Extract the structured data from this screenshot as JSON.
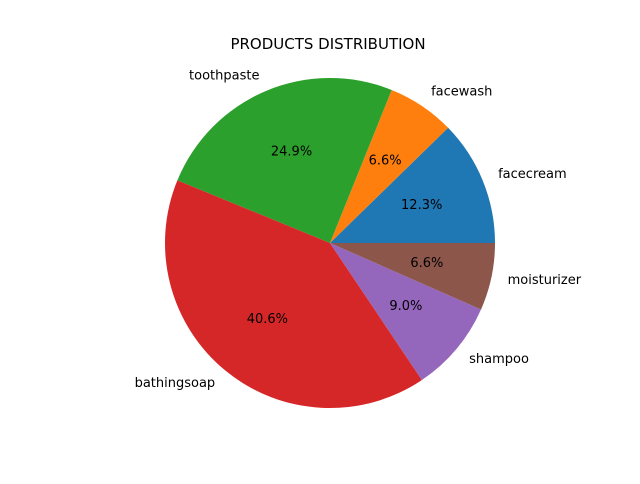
{
  "chart_data": {
    "type": "pie",
    "title": "PRODUCTS DISTRIBUTION",
    "labels": [
      "facecream",
      "facewash",
      "toothpaste",
      "bathingsoap",
      "shampoo",
      "moisturizer"
    ],
    "values": [
      12.3,
      6.6,
      24.9,
      40.6,
      9.0,
      6.6
    ],
    "percent_labels": [
      "12.3%",
      "6.6%",
      "24.9%",
      "40.6%",
      "9.0%",
      "6.6%"
    ],
    "colors": [
      "#1f77b4",
      "#ff7f0e",
      "#2ca02c",
      "#d62728",
      "#9467bd",
      "#8c564b"
    ],
    "start_angle_deg": 0,
    "direction": "counterclockwise",
    "legend": "none"
  }
}
